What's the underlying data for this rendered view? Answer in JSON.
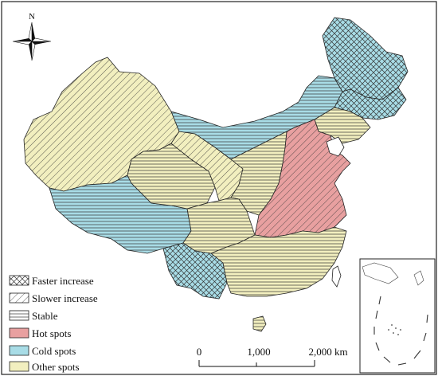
{
  "north_label": "N",
  "legend": [
    {
      "label": "Faster increase",
      "pattern": "crosshatch"
    },
    {
      "label": "Slower increase",
      "pattern": "diagonal"
    },
    {
      "label": "Stable",
      "pattern": "horizontal"
    },
    {
      "label": "Hot spots",
      "color": "#e8a0a0"
    },
    {
      "label": "Cold spots",
      "color": "#a8dce6"
    },
    {
      "label": "Other spots",
      "color": "#f2efbf"
    }
  ],
  "scale_bar": {
    "ticks": [
      "0",
      "1,000",
      "2,000 km"
    ]
  },
  "colors": {
    "hot": "#e8a0a0",
    "cold": "#a8dce6",
    "other": "#f2efbf",
    "outline": "#222222"
  }
}
